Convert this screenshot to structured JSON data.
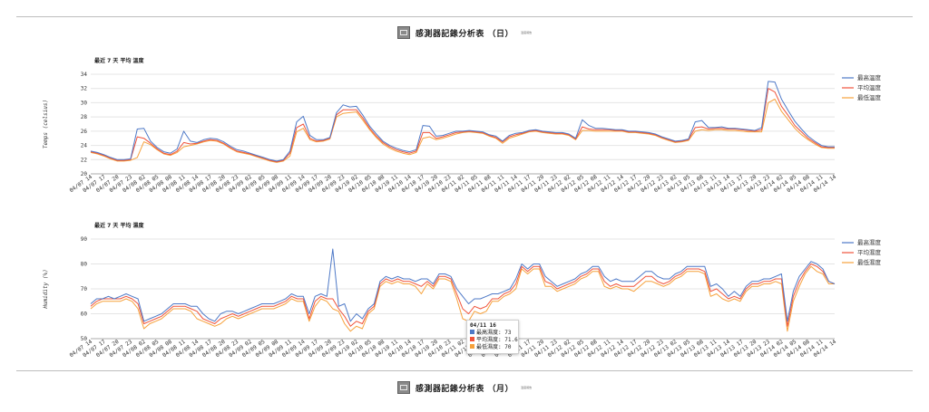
{
  "header_top": {
    "title": "感測器記錄分析表 （日）",
    "sub": "溫度報告"
  },
  "header_bottom": {
    "title": "感測器記錄分析表 （月）",
    "sub": "溫度報告"
  },
  "legend_labels_temp": [
    "最高溫度",
    "平均溫度",
    "最低溫度"
  ],
  "legend_labels_hum": [
    "最高濕度",
    "平均濕度",
    "最低濕度"
  ],
  "colors": {
    "max": "#4e79c7",
    "avg": "#f0533b",
    "min": "#f6a13b",
    "grid": "#e4e4e4",
    "axis": "#333333"
  },
  "tooltip": {
    "title": "04/11 16",
    "rows": [
      {
        "label": "最高濕度",
        "value": "73"
      },
      {
        "label": "平均濕度",
        "value": "71.6"
      },
      {
        "label": "最低濕度",
        "value": "70"
      }
    ]
  },
  "chart_data": [
    {
      "type": "line",
      "title": "最近 7 天 平均 溫度",
      "ylabel": "Temps (celsius)",
      "ylim": [
        20,
        34
      ],
      "yticks": [
        20,
        22,
        24,
        26,
        28,
        30,
        32,
        34
      ],
      "grid": true,
      "legend": "right",
      "xticks": [
        "04/07 14",
        "04/07 17",
        "04/07 20",
        "04/07 23",
        "04/08 02",
        "04/08 05",
        "04/08 08",
        "04/08 11",
        "04/08 14",
        "04/08 17",
        "04/08 20",
        "04/08 23",
        "04/09 02",
        "04/09 05",
        "04/09 08",
        "04/09 11",
        "04/09 14",
        "04/09 17",
        "04/09 20",
        "04/09 23",
        "04/10 02",
        "04/10 05",
        "04/10 08",
        "04/10 11",
        "04/10 14",
        "04/10 17",
        "04/10 20",
        "04/10 23",
        "04/11 02",
        "04/11 05",
        "04/11 08",
        "04/11 11",
        "04/11 14",
        "04/11 17",
        "04/11 20",
        "04/11 23",
        "04/12 02",
        "04/12 05",
        "04/12 08",
        "04/12 11",
        "04/12 14",
        "04/12 17",
        "04/12 20",
        "04/12 23",
        "04/13 02",
        "04/13 05",
        "04/13 08",
        "04/13 11",
        "04/13 14",
        "04/13 17",
        "04/13 20",
        "04/13 23",
        "04/14 02",
        "04/14 05",
        "04/14 08",
        "04/14 11",
        "04/14 14"
      ],
      "series": [
        {
          "name": "最高溫度",
          "values": [
            23.2,
            23.0,
            22.7,
            22.3,
            22.0,
            22.0,
            22.1,
            26.3,
            26.4,
            24.6,
            23.7,
            23.1,
            22.9,
            23.5,
            26.0,
            24.6,
            24.4,
            24.8,
            25.0,
            24.9,
            24.5,
            23.9,
            23.4,
            23.2,
            22.9,
            22.6,
            22.3,
            22.0,
            21.8,
            22.0,
            23.2,
            27.3,
            28.1,
            25.4,
            24.8,
            24.8,
            25.1,
            28.6,
            29.7,
            29.4,
            29.5,
            28.2,
            26.7,
            25.6,
            24.6,
            24.0,
            23.6,
            23.3,
            23.1,
            23.4,
            26.8,
            26.7,
            25.3,
            25.4,
            25.7,
            26.0,
            26.0,
            26.1,
            26.0,
            25.9,
            25.5,
            25.3,
            24.6,
            25.4,
            25.7,
            25.8,
            26.1,
            26.2,
            26.0,
            25.9,
            25.8,
            25.8,
            25.6,
            25.0,
            27.6,
            26.8,
            26.4,
            26.4,
            26.3,
            26.2,
            26.2,
            26.0,
            26.0,
            25.9,
            25.8,
            25.6,
            25.2,
            24.9,
            24.6,
            24.7,
            24.9,
            27.3,
            27.5,
            26.5,
            26.5,
            26.6,
            26.4,
            26.4,
            26.3,
            26.2,
            26.1,
            26.5,
            33.0,
            32.9,
            30.5,
            28.9,
            27.4,
            26.3,
            25.3,
            24.6,
            24.0,
            23.8,
            23.8
          ]
        },
        {
          "name": "平均溫度",
          "values": [
            23.1,
            22.9,
            22.6,
            22.2,
            21.9,
            21.9,
            22.0,
            25.2,
            25.0,
            24.3,
            23.5,
            22.9,
            22.7,
            23.2,
            24.4,
            24.2,
            24.3,
            24.6,
            24.8,
            24.7,
            24.3,
            23.7,
            23.2,
            23.0,
            22.8,
            22.5,
            22.2,
            21.9,
            21.7,
            21.9,
            22.9,
            26.5,
            27.0,
            25.0,
            24.6,
            24.7,
            25.0,
            28.3,
            29.0,
            29.0,
            29.0,
            27.8,
            26.4,
            25.3,
            24.4,
            23.8,
            23.4,
            23.1,
            22.9,
            23.2,
            25.8,
            25.8,
            25.0,
            25.2,
            25.5,
            25.8,
            25.9,
            26.0,
            25.9,
            25.8,
            25.4,
            25.1,
            24.5,
            25.2,
            25.5,
            25.7,
            26.0,
            26.1,
            25.9,
            25.8,
            25.7,
            25.7,
            25.5,
            24.9,
            26.6,
            26.3,
            26.2,
            26.2,
            26.2,
            26.1,
            26.1,
            25.9,
            25.9,
            25.8,
            25.7,
            25.5,
            25.1,
            24.8,
            24.5,
            24.6,
            24.8,
            26.5,
            26.6,
            26.3,
            26.4,
            26.4,
            26.3,
            26.3,
            26.2,
            26.1,
            26.0,
            26.2,
            32.0,
            31.5,
            29.5,
            28.2,
            26.8,
            25.9,
            25.0,
            24.4,
            23.8,
            23.7,
            23.7
          ]
        },
        {
          "name": "最低溫度",
          "values": [
            23.0,
            22.8,
            22.5,
            22.1,
            21.8,
            21.8,
            21.9,
            22.3,
            24.5,
            24.1,
            23.4,
            22.8,
            22.6,
            23.0,
            23.8,
            24.0,
            24.2,
            24.5,
            24.7,
            24.6,
            24.2,
            23.6,
            23.1,
            22.9,
            22.7,
            22.4,
            22.1,
            21.8,
            21.6,
            21.8,
            22.5,
            25.9,
            26.4,
            24.8,
            24.5,
            24.6,
            24.9,
            28.0,
            28.5,
            28.6,
            28.7,
            27.5,
            26.2,
            25.1,
            24.2,
            23.6,
            23.2,
            22.9,
            22.7,
            23.0,
            25.0,
            25.2,
            24.8,
            25.0,
            25.3,
            25.6,
            25.8,
            25.9,
            25.8,
            25.7,
            25.3,
            25.0,
            24.3,
            25.0,
            25.3,
            25.6,
            25.9,
            26.0,
            25.8,
            25.7,
            25.6,
            25.6,
            25.4,
            24.8,
            26.1,
            26.1,
            26.0,
            26.0,
            26.0,
            26.0,
            26.0,
            25.8,
            25.8,
            25.7,
            25.6,
            25.4,
            25.0,
            24.7,
            24.4,
            24.5,
            24.7,
            26.0,
            26.2,
            26.1,
            26.2,
            26.2,
            26.1,
            26.1,
            26.0,
            25.9,
            25.9,
            25.9,
            30.0,
            30.5,
            28.8,
            27.6,
            26.4,
            25.5,
            24.8,
            24.2,
            23.7,
            23.6,
            23.6
          ]
        }
      ]
    },
    {
      "type": "line",
      "title": "最近 7 天 平均 濕度",
      "ylabel": "Humidity (%)",
      "ylim": [
        50,
        90
      ],
      "yticks": [
        50,
        60,
        70,
        80,
        90
      ],
      "grid": true,
      "legend": "right",
      "xticks": [
        "04/07 14",
        "04/07 17",
        "04/07 20",
        "04/07 23",
        "04/08 02",
        "04/08 05",
        "04/08 08",
        "04/08 11",
        "04/08 14",
        "04/08 17",
        "04/08 20",
        "04/08 23",
        "04/09 02",
        "04/09 05",
        "04/09 08",
        "04/09 11",
        "04/09 14",
        "04/09 17",
        "04/09 20",
        "04/09 23",
        "04/10 02",
        "04/10 05",
        "04/10 08",
        "04/10 11",
        "04/10 14",
        "04/10 17",
        "04/10 20",
        "04/10 23",
        "04/11 02",
        "04/11 05",
        "04/11 08",
        "04/11 11",
        "04/11 14",
        "04/11 17",
        "04/11 20",
        "04/11 23",
        "04/12 02",
        "04/12 05",
        "04/12 08",
        "04/12 11",
        "04/12 14",
        "04/12 17",
        "04/12 20",
        "04/12 23",
        "04/13 02",
        "04/13 05",
        "04/13 08",
        "04/13 11",
        "04/13 14",
        "04/13 17",
        "04/13 20",
        "04/13 23",
        "04/14 02",
        "04/14 05",
        "04/14 08",
        "04/14 11",
        "04/14 14"
      ],
      "series": [
        {
          "name": "最高濕度",
          "values": [
            64,
            66,
            66,
            67,
            66,
            67,
            68,
            67,
            66,
            57,
            58,
            59,
            60,
            62,
            64,
            64,
            64,
            63,
            63,
            60,
            58,
            57,
            60,
            61,
            61,
            60,
            61,
            62,
            63,
            64,
            64,
            64,
            65,
            66,
            68,
            67,
            67,
            60,
            67,
            68,
            67,
            86,
            63,
            64,
            57,
            60,
            58,
            62,
            64,
            73,
            75,
            74,
            75,
            74,
            74,
            73,
            74,
            74,
            72,
            76,
            76,
            75,
            70,
            67,
            64,
            66,
            66,
            67,
            68,
            68,
            69,
            70,
            74,
            80,
            78,
            80,
            80,
            75,
            73,
            71,
            72,
            73,
            74,
            76,
            77,
            79,
            79,
            75,
            73,
            74,
            73,
            73,
            73,
            75,
            77,
            77,
            75,
            74,
            74,
            76,
            77,
            79,
            79,
            79,
            79,
            71,
            72,
            70,
            67,
            69,
            67,
            71,
            73,
            73,
            74,
            74,
            75,
            76,
            57,
            69,
            75,
            78,
            81,
            80,
            78,
            73,
            72
          ]
        },
        {
          "name": "平均濕度",
          "values": [
            63,
            65,
            66,
            66,
            66,
            66,
            67,
            66,
            64,
            56,
            57,
            58,
            59,
            61,
            63,
            63,
            63,
            62,
            61,
            58,
            57,
            56,
            58,
            59,
            60,
            59,
            60,
            61,
            62,
            63,
            63,
            63,
            64,
            65,
            67,
            66,
            66,
            58,
            65,
            67,
            66,
            66,
            62,
            59,
            55,
            57,
            56,
            61,
            63,
            72,
            74,
            73,
            74,
            73,
            73,
            72,
            71,
            73,
            71,
            75,
            75,
            74,
            68,
            62,
            60,
            63,
            62,
            63,
            66,
            66,
            68,
            69,
            72,
            79,
            77,
            79,
            79,
            73,
            72,
            70,
            71,
            72,
            73,
            75,
            76,
            78,
            78,
            73,
            71,
            72,
            71,
            71,
            71,
            73,
            75,
            75,
            73,
            72,
            73,
            75,
            76,
            78,
            78,
            78,
            77,
            69,
            70,
            68,
            66,
            67,
            66,
            70,
            72,
            72,
            73,
            73,
            74,
            74,
            55,
            67,
            73,
            77,
            80,
            79,
            77,
            73,
            72
          ]
        },
        {
          "name": "最低濕度",
          "values": [
            62,
            64,
            65,
            65,
            65,
            65,
            66,
            65,
            62,
            54,
            56,
            57,
            58,
            60,
            62,
            62,
            62,
            61,
            58,
            57,
            56,
            55,
            56,
            58,
            59,
            58,
            59,
            60,
            61,
            62,
            62,
            62,
            63,
            64,
            66,
            65,
            65,
            57,
            63,
            66,
            65,
            62,
            61,
            56,
            53,
            55,
            54,
            60,
            62,
            71,
            73,
            72,
            73,
            72,
            72,
            71,
            68,
            72,
            70,
            74,
            74,
            73,
            66,
            58,
            57,
            61,
            60,
            61,
            65,
            65,
            67,
            68,
            70,
            78,
            76,
            78,
            78,
            71,
            71,
            69,
            70,
            71,
            72,
            74,
            75,
            77,
            77,
            71,
            70,
            71,
            70,
            70,
            69,
            71,
            73,
            73,
            72,
            71,
            72,
            74,
            75,
            77,
            77,
            77,
            76,
            67,
            68,
            66,
            65,
            66,
            65,
            69,
            71,
            71,
            72,
            72,
            73,
            72,
            53,
            65,
            71,
            76,
            79,
            77,
            76,
            72,
            72
          ]
        }
      ]
    }
  ]
}
